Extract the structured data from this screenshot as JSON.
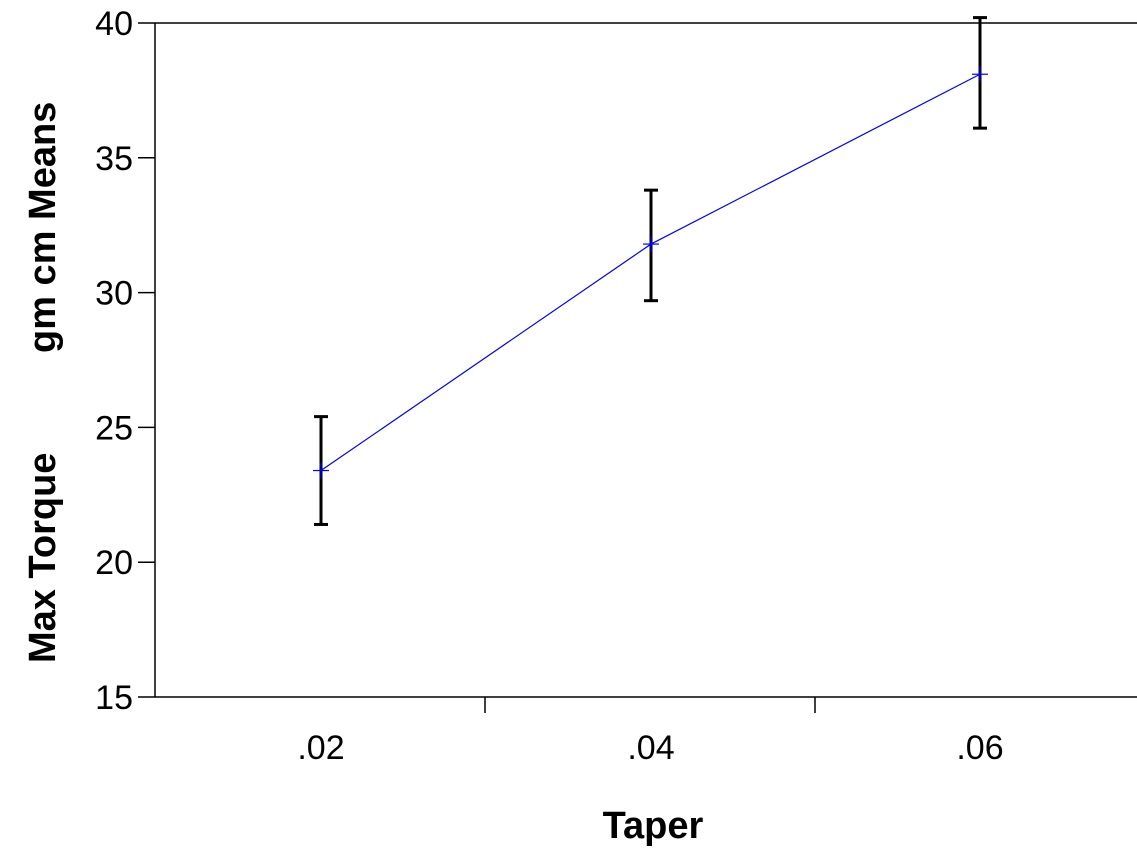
{
  "chart_data": {
    "type": "line",
    "xlabel": "Taper",
    "ylabel_part1": "Max Torque",
    "ylabel_part2": "gm cm Means",
    "categories": [
      ".02",
      ".04",
      ".06"
    ],
    "series": [
      {
        "values": [
          23.4,
          31.8,
          38.1
        ],
        "error_low": [
          21.4,
          29.7,
          36.1
        ],
        "error_high": [
          25.4,
          33.8,
          40.2
        ],
        "color": "#0000ff"
      }
    ],
    "ylim": [
      15,
      40
    ],
    "yticks": [
      15,
      20,
      25,
      30,
      35,
      40
    ],
    "ytick_labels": [
      "15",
      "20",
      "25",
      "30",
      "35",
      "40"
    ],
    "grid": false,
    "error_bar_color": "#000000",
    "axis_color": "#000000"
  }
}
